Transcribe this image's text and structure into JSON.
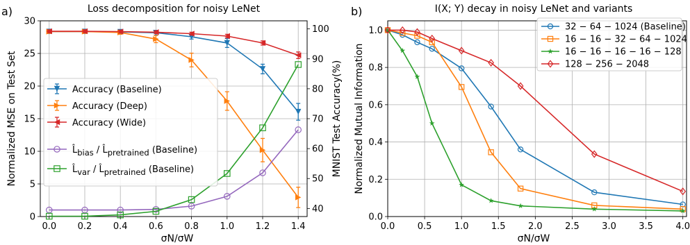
{
  "figure": {
    "panel_labels": [
      "a)",
      "b)"
    ]
  },
  "chart_data": [
    {
      "type": "line",
      "title": "Loss decomposition for noisy LeNet",
      "xlabel": "σN/σW",
      "ylabel": "Normalized MSE on Test Set",
      "y2label": "MNIST Test Accuracy(%)",
      "xlim": [
        -0.05,
        1.45
      ],
      "ylim": [
        0,
        30
      ],
      "y2lim": [
        37.3,
        102.7
      ],
      "x": [
        0.0,
        0.2,
        0.4,
        0.6,
        0.8,
        1.0,
        1.2,
        1.4
      ],
      "xticks": [
        "0.0",
        "0.2",
        "0.4",
        "0.6",
        "0.8",
        "1.0",
        "1.2",
        "1.4"
      ],
      "yticks": [
        "0",
        "5",
        "10",
        "15",
        "20",
        "25",
        "30"
      ],
      "y2ticks": [
        "40",
        "50",
        "60",
        "70",
        "80",
        "90",
        "100"
      ],
      "grid": true,
      "legend_position": "center-left",
      "series": [
        {
          "name": "Accuracy (Baseline)",
          "axis": "right",
          "color": "#1f77b4",
          "marker": "tri_down",
          "values": [
            99.1,
            99.1,
            99.0,
            98.7,
            97.4,
            95.3,
            86.6,
            72.3
          ],
          "errors": [
            0.6,
            0.6,
            0.6,
            0.8,
            0.8,
            1.5,
            1.6,
            2.8
          ]
        },
        {
          "name": "Accuracy (Deep)",
          "axis": "right",
          "color": "#ff7f0e",
          "marker": "tri_right",
          "values": [
            99.1,
            99.1,
            98.8,
            96.6,
            89.6,
            75.9,
            59.5,
            43.7
          ],
          "errors": [
            0.6,
            0.6,
            0.6,
            1.2,
            2.3,
            3.1,
            3.9,
            3.4
          ]
        },
        {
          "name": "Accuracy (Wide)",
          "axis": "right",
          "color": "#d62728",
          "marker": "tri_left",
          "values": [
            99.2,
            99.2,
            99.1,
            98.9,
            98.4,
            97.6,
            95.3,
            91.2
          ],
          "errors": [
            0.5,
            0.5,
            0.5,
            0.5,
            0.5,
            0.6,
            0.7,
            1.1
          ]
        },
        {
          "name_parts": [
            "L̂",
            "bias",
            " / L̂",
            "pretrained",
            " (Baseline)"
          ],
          "axis": "left",
          "color": "#9467bd",
          "marker": "circle",
          "values": [
            1.0,
            1.0,
            1.0,
            1.1,
            1.6,
            3.1,
            6.7,
            13.3
          ]
        },
        {
          "name_parts": [
            "L̂",
            "var",
            " / L̂",
            "pretrained",
            " (Baseline)"
          ],
          "axis": "left",
          "color": "#2ca02c",
          "marker": "square",
          "values": [
            0.05,
            0.05,
            0.25,
            0.8,
            2.6,
            6.6,
            13.6,
            23.3
          ]
        }
      ]
    },
    {
      "type": "line",
      "title": "I(X; Y) decay in noisy LeNet and variants",
      "xlabel": "σN/σW",
      "ylabel": "Normalized Mutual Information",
      "xlim": [
        0.0,
        4.05
      ],
      "ylim": [
        0.0,
        1.05
      ],
      "xticks": [
        "0.0",
        "0.5",
        "1.0",
        "1.5",
        "2.0",
        "2.5",
        "3.0",
        "3.5",
        "4.0"
      ],
      "yticks": [
        "0.0",
        "0.2",
        "0.4",
        "0.6",
        "0.8",
        "1.0"
      ],
      "grid": true,
      "legend_position": "top-right",
      "series": [
        {
          "name": "32 − 64 − 1024 (Baseline)",
          "color": "#1f77b4",
          "marker": "circle",
          "x": [
            0.0,
            0.2,
            0.4,
            0.6,
            1.0,
            1.4,
            1.8,
            2.8,
            4.0
          ],
          "values": [
            1.0,
            0.975,
            0.935,
            0.9,
            0.795,
            0.59,
            0.36,
            0.13,
            0.065
          ]
        },
        {
          "name": "16 − 16 − 32 − 64 − 1024",
          "color": "#ff7f0e",
          "marker": "square",
          "x": [
            0.0,
            0.2,
            0.4,
            0.6,
            1.0,
            1.4,
            1.8,
            2.8,
            4.0
          ],
          "values": [
            1.0,
            0.985,
            0.97,
            0.935,
            0.695,
            0.345,
            0.15,
            0.06,
            0.04
          ]
        },
        {
          "name": "16 − 16 − 16 − 16 − 128",
          "color": "#2ca02c",
          "marker": "star",
          "x": [
            0.0,
            0.2,
            0.4,
            0.6,
            1.0,
            1.4,
            1.8,
            2.8,
            4.0
          ],
          "values": [
            1.0,
            0.89,
            0.75,
            0.5,
            0.17,
            0.085,
            0.057,
            0.04,
            0.03
          ]
        },
        {
          "name": "128 − 256 − 2048",
          "color": "#d62728",
          "marker": "diamond",
          "x": [
            0.0,
            0.2,
            0.4,
            0.6,
            1.0,
            1.4,
            1.8,
            2.8,
            4.0
          ],
          "values": [
            1.0,
            1.0,
            0.99,
            0.955,
            0.89,
            0.825,
            0.7,
            0.335,
            0.135
          ]
        }
      ]
    }
  ]
}
